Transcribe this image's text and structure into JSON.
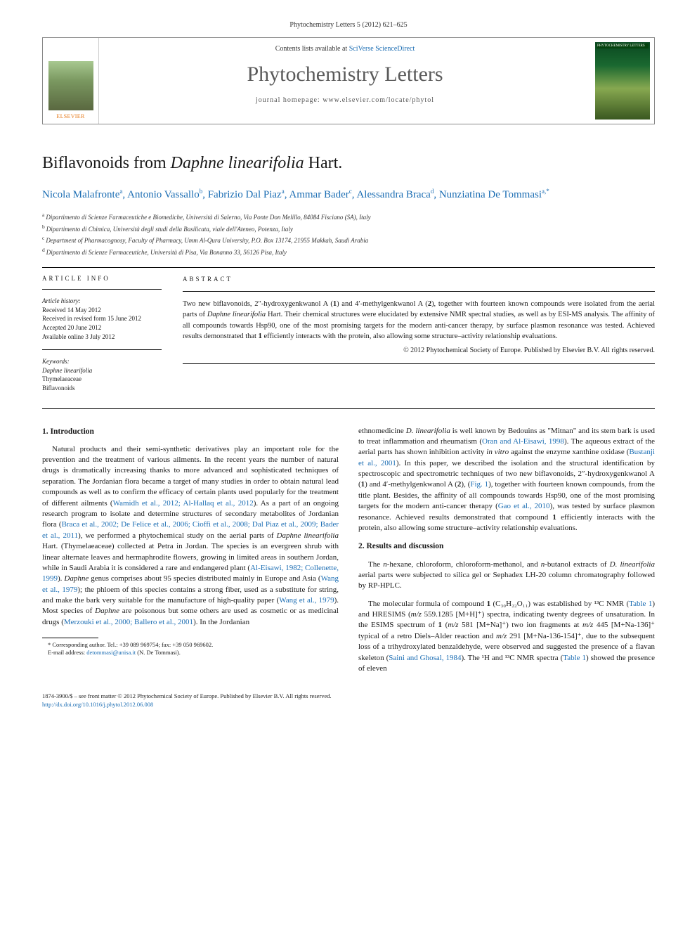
{
  "header": {
    "citation": "Phytochemistry Letters 5 (2012) 621–625"
  },
  "masthead": {
    "contents_prefix": "Contents lists available at ",
    "contents_link": "SciVerse ScienceDirect",
    "journal_title": "Phytochemistry Letters",
    "homepage_prefix": "journal homepage: ",
    "homepage_url": "www.elsevier.com/locate/phytol",
    "publisher_logo": "ELSEVIER",
    "cover_text": "PHYTOCHEMISTRY LETTERS"
  },
  "article": {
    "title_plain": "Biflavonoids from ",
    "title_species": "Daphne linearifolia",
    "title_suffix": " Hart.",
    "authors": [
      {
        "name": "Nicola Malafronte",
        "aff": "a"
      },
      {
        "name": "Antonio Vassallo",
        "aff": "b"
      },
      {
        "name": "Fabrizio Dal Piaz",
        "aff": "a"
      },
      {
        "name": "Ammar Bader",
        "aff": "c"
      },
      {
        "name": "Alessandra Braca",
        "aff": "d"
      },
      {
        "name": "Nunziatina De Tommasi",
        "aff": "a,*"
      }
    ],
    "affiliations": [
      {
        "key": "a",
        "text": "Dipartimento di Scienze Farmaceutiche e Biomediche, Università di Salerno, Via Ponte Don Melillo, 84084 Fisciano (SA), Italy"
      },
      {
        "key": "b",
        "text": "Dipartimento di Chimica, Università degli studi della Basilicata, viale dell'Ateneo, Potenza, Italy"
      },
      {
        "key": "c",
        "text": "Department of Pharmacognosy, Faculty of Pharmacy, Umm Al-Qura University, P.O. Box 13174, 21955 Makkah, Saudi Arabia"
      },
      {
        "key": "d",
        "text": "Dipartimento di Scienze Farmaceutiche, Università di Pisa, Via Bonanno 33, 56126 Pisa, Italy"
      }
    ]
  },
  "info": {
    "heading": "ARTICLE INFO",
    "history_label": "Article history:",
    "history": [
      "Received 14 May 2012",
      "Received in revised form 15 June 2012",
      "Accepted 20 June 2012",
      "Available online 3 July 2012"
    ],
    "keywords_label": "Keywords:",
    "keywords": [
      "Daphne linearifolia",
      "Thymelaeaceae",
      "Biflavonoids"
    ]
  },
  "abstract": {
    "heading": "ABSTRACT",
    "text_parts": {
      "p1": "Two new biflavonoids, 2″-hydroxygenkwanol A (",
      "b1": "1",
      "p2": ") and 4′-methylgenkwanol A (",
      "b2": "2",
      "p3": "), together with fourteen known compounds were isolated from the aerial parts of ",
      "sp1": "Daphne linearifolia",
      "p4": " Hart. Their chemical structures were elucidated by extensive NMR spectral studies, as well as by ESI-MS analysis. The affinity of all compounds towards Hsp90, one of the most promising targets for the modern anti-cancer therapy, by surface plasmon resonance was tested. Achieved results demonstrated that ",
      "b3": "1",
      "p5": " efficiently interacts with the protein, also allowing some structure–activity relationship evaluations."
    },
    "copyright": "© 2012 Phytochemical Society of Europe. Published by Elsevier B.V. All rights reserved."
  },
  "sections": {
    "s1_heading": "1. Introduction",
    "s2_heading": "2. Results and discussion",
    "intro": {
      "p1a": "Natural products and their semi-synthetic derivatives play an important role for the prevention and the treatment of various ailments. In the recent years the number of natural drugs is dramatically increasing thanks to more advanced and sophisticated techniques of separation. The Jordanian flora became a target of many studies in order to obtain natural lead compounds as well as to confirm the efficacy of certain plants used popularly for the treatment of different ailments (",
      "r1": "Wamidh et al., 2012; Al-Hallaq et al., 2012",
      "p1b": "). As a part of an ongoing research program to isolate and determine structures of secondary metabolites of Jordanian flora (",
      "r2": "Braca et al., 2002; De Felice et al., 2006; Cioffi et al., 2008; Dal Piaz et al., 2009; Bader et al., 2011",
      "p1c": "), we performed a phytochemical study on the aerial parts of ",
      "sp1": "Daphne linearifolia",
      "p1d": " Hart. (Thymelaeaceae) collected at Petra in Jordan. The species is an evergreen shrub with linear alternate leaves and hermaphrodite flowers, growing in limited areas in southern Jordan, while in Saudi Arabia it is considered a rare and endangered plant (",
      "r3": "Al-Eisawi, 1982; Collenette, 1999",
      "p1e": "). ",
      "sp2": "Daphne",
      "p1f": " genus comprises about 95 species distributed mainly in Europe and Asia (",
      "r4": "Wang et al., 1979",
      "p1g": "); the phloem of this species contains a strong fiber, used as a substitute for string, and make the bark very suitable for the manufacture of high-quality paper (",
      "r5": "Wang et al., 1979",
      "p1h": "). Most species of ",
      "sp3": "Daphne",
      "p1i": " are poisonous but some others are used as cosmetic or as medicinal drugs (",
      "r6": "Merzouki et al., 2000; Ballero et al., 2001",
      "p1j": "). In the Jordanian"
    },
    "intro2": {
      "p2a": "ethnomedicine ",
      "sp4": "D. linearifolia",
      "p2b": " is well known by Bedouins as \"Mitnan\" and its stem bark is used to treat inflammation and rheumatism (",
      "r7": "Oran and Al-Eisawi, 1998",
      "p2c": "). The aqueous extract of the aerial parts has shown inhibition activity ",
      "sp5": "in vitro",
      "p2d": " against the enzyme xanthine oxidase (",
      "r8": "Bustanji et al., 2001",
      "p2e": "). In this paper, we described the isolation and the structural identification by spectroscopic and spectrometric techniques of two new biflavonoids, 2″-hydroxygenkwanol A (",
      "b1": "1",
      "p2f": ") and 4′-methylgenkwanol A (",
      "b2": "2",
      "p2g": "), (",
      "r9": "Fig. 1",
      "p2h": "), together with fourteen known compounds, from the title plant. Besides, the affinity of all compounds towards Hsp90, one of the most promising targets for the modern anti-cancer therapy (",
      "r10": "Gao et al., 2010",
      "p2i": "), was tested by surface plasmon resonance. Achieved results demonstrated that compound ",
      "b3": "1",
      "p2j": " efficiently interacts with the protein, also allowing some structure–activity relationship evaluations."
    },
    "results": {
      "p1a": "The ",
      "sp1": "n",
      "p1b": "-hexane, chloroform, chloroform-methanol, and ",
      "sp2": "n",
      "p1c": "-butanol extracts of ",
      "sp3": "D. linearifolia",
      "p1d": " aerial parts were subjected to silica gel or Sephadex LH-20 column chromatography followed by RP-HPLC.",
      "p2a": "The molecular formula of compound ",
      "b1": "1",
      "p2b": " (C₃₀H₂₂O₁₁) was established by ¹³C NMR (",
      "r1": "Table 1",
      "p2c": ") and HRESIMS (",
      "sp4": "m/z",
      "p2d": " 559.1285 [M+H]⁺) spectra, indicating twenty degrees of unsaturation. In the ESIMS spectrum of ",
      "b2": "1",
      "p2e": " (",
      "sp5": "m/z",
      "p2f": " 581 [M+Na]⁺) two ion fragments at ",
      "sp6": "m/z",
      "p2g": " 445 [M+Na-136]⁺ typical of a retro Diels–Alder reaction and ",
      "sp7": "m/z",
      "p2h": " 291 [M+Na-136-154]⁺, due to the subsequent loss of a trihydroxylated benzaldehyde, were observed and suggested the presence of a flavan skeleton (",
      "r2": "Saini and Ghosal, 1984",
      "p2i": "). The ¹H and ¹³C NMR spectra (",
      "r3": "Table 1",
      "p2j": ") showed the presence of eleven"
    }
  },
  "footnote": {
    "corr": "* Corresponding author. Tel.: +39 089 969754; fax: +39 050 969602.",
    "email_label": "E-mail address: ",
    "email": "detommasi@unisa.it",
    "email_suffix": " (N. De Tommasi)."
  },
  "bottom": {
    "issn": "1874-3900/$ – see front matter © 2012 Phytochemical Society of Europe. Published by Elsevier B.V. All rights reserved.",
    "doi": "http://dx.doi.org/10.1016/j.phytol.2012.06.008"
  },
  "colors": {
    "link": "#1b6db3",
    "elsevier_orange": "#e67817",
    "text": "#1a1a1a"
  }
}
